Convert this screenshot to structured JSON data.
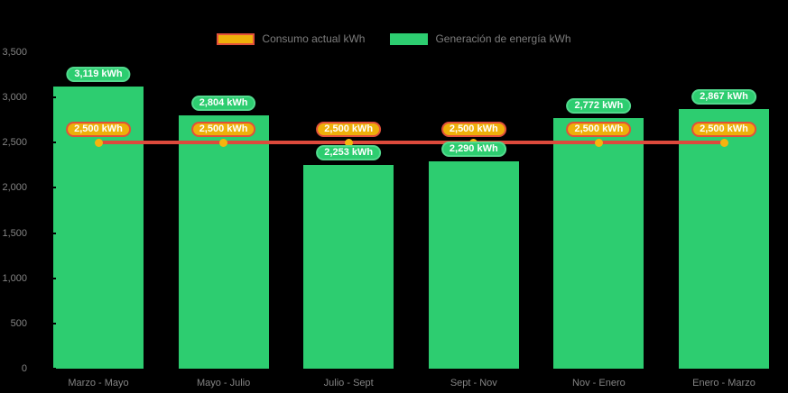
{
  "chart_data": {
    "type": "bar",
    "title": "",
    "categories": [
      "Marzo - Mayo",
      "Mayo - Julio",
      "Julio - Sept",
      "Sept - Nov",
      "Nov - Enero",
      "Enero - Marzo"
    ],
    "series": [
      {
        "name": "Consumo actual kWh",
        "type": "line",
        "values": [
          2500,
          2500,
          2500,
          2500,
          2500,
          2500
        ],
        "labels": [
          "2,500 kWh",
          "2,500 kWh",
          "2,500 kWh",
          "2,500 kWh",
          "2,500 kWh",
          "2,500 kWh"
        ]
      },
      {
        "name": "Generación de energía kWh",
        "type": "bar",
        "values": [
          3119,
          2804,
          2253,
          2290,
          2772,
          2867
        ],
        "labels": [
          "3,119 kWh",
          "2,804 kWh",
          "2,253 kWh",
          "2,290 kWh",
          "2,772 kWh",
          "2,867 kWh"
        ]
      }
    ],
    "xlabel": "",
    "ylabel": "",
    "ylim": [
      0,
      3500
    ],
    "ytick_step": 500,
    "yticks": [
      "3,500",
      "3,000",
      "2,500",
      "2,000",
      "1,500",
      "1,000",
      "500",
      "0"
    ],
    "grid": false,
    "legend_position": "top"
  },
  "colors": {
    "bar_green": "#2dcd70",
    "badge_green_border": "#52da8e",
    "line_red": "#dd4a3c",
    "marker_yellow": "#f6b40e",
    "badge_amber": "#eeb00a",
    "badge_amber_border": "#e2503a",
    "axis_text": "#848484",
    "legend_text": "#7d7d7d",
    "badge_text": "#ffffff",
    "background": "#000000"
  }
}
